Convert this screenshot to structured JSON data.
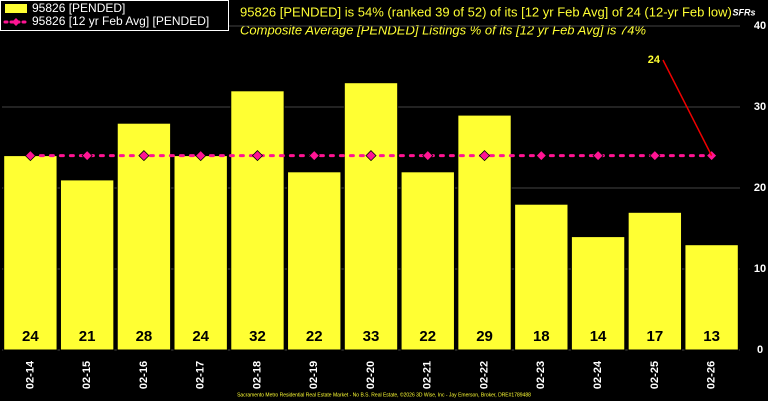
{
  "chart_data": {
    "type": "bar",
    "title": "95826 [PENDED] is 54% (ranked 39 of 52) of its [12 yr Feb Avg] of 24 (12-yr Feb low)",
    "subtitle": "Composite Average [PENDED] Listings % of its [12 yr Feb Avg] is 74%",
    "footer": "Sacramento Metro Residential Real Estate Market - No B.S. Real Estate, ©2026 3D Wise, Inc - Jay Emerson, Broker, DRE#1789488",
    "y_axis_label": "SFRs",
    "annotation": "24",
    "categories": [
      "02-14",
      "02-15",
      "02-16",
      "02-17",
      "02-18",
      "02-19",
      "02-20",
      "02-21",
      "02-22",
      "02-23",
      "02-24",
      "02-25",
      "02-26"
    ],
    "series": [
      {
        "name": "95826 [PENDED]",
        "color": "#ffff33",
        "values": [
          24,
          21,
          28,
          24,
          32,
          22,
          33,
          22,
          29,
          18,
          14,
          17,
          13
        ]
      },
      {
        "name": "95826 [12 yr Feb Avg] [PENDED]",
        "color": "#ff1493",
        "values": [
          24,
          24,
          24,
          24,
          24,
          24,
          24,
          24,
          24,
          24,
          24,
          24,
          24
        ]
      }
    ],
    "ylim": [
      0,
      40
    ],
    "yticks": [
      0,
      10,
      20,
      30,
      40
    ],
    "grid": true
  }
}
